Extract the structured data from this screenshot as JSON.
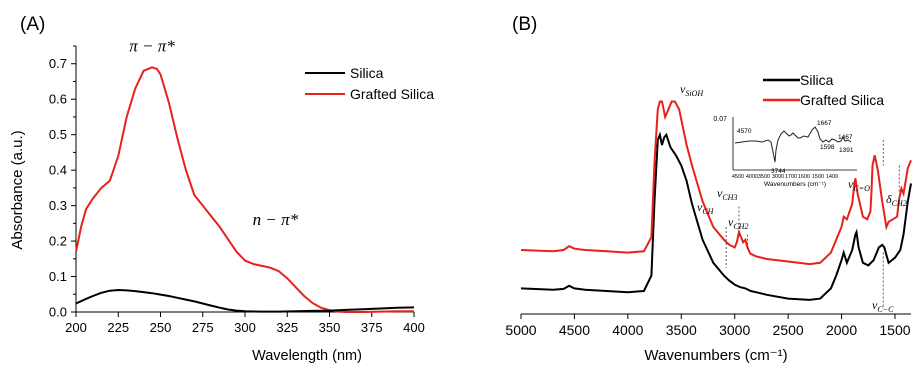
{
  "chart_data": [
    {
      "panel_label": "(A)",
      "type": "line",
      "xlabel": "Wavelength (nm)",
      "ylabel": "Absorbance (a.u.)",
      "xlim": [
        200,
        400
      ],
      "ylim": [
        0.0,
        0.75
      ],
      "xticks": [
        "200",
        "225",
        "250",
        "275",
        "300",
        "325",
        "350",
        "375",
        "400"
      ],
      "yticks": [
        "0.0",
        "0.1",
        "0.2",
        "0.3",
        "0.4",
        "0.5",
        "0.6",
        "0.7"
      ],
      "legend_position": "top-right",
      "annotations": [
        {
          "text": "π − π*",
          "x": 245,
          "y": 0.735
        },
        {
          "text": "n − π*",
          "x": 318,
          "y": 0.245
        }
      ],
      "series": [
        {
          "name": "Silica",
          "color": "#000000",
          "x": [
            200,
            205,
            210,
            215,
            220,
            225,
            230,
            235,
            240,
            245,
            250,
            255,
            260,
            265,
            270,
            275,
            280,
            285,
            290,
            295,
            300,
            310,
            320,
            330,
            340,
            350,
            360,
            370,
            380,
            390,
            400
          ],
          "y": [
            0.024,
            0.035,
            0.045,
            0.054,
            0.06,
            0.062,
            0.061,
            0.059,
            0.056,
            0.053,
            0.049,
            0.045,
            0.04,
            0.035,
            0.03,
            0.024,
            0.018,
            0.012,
            0.007,
            0.004,
            0.002,
            0.001,
            0.001,
            0.002,
            0.003,
            0.004,
            0.006,
            0.008,
            0.01,
            0.012,
            0.013
          ]
        },
        {
          "name": "Grafted Silica",
          "color": "#e8211d",
          "x": [
            200,
            203,
            206,
            210,
            215,
            220,
            225,
            230,
            235,
            240,
            245,
            248,
            250,
            255,
            260,
            265,
            270,
            275,
            280,
            285,
            290,
            295,
            300,
            305,
            310,
            315,
            320,
            325,
            330,
            335,
            340,
            345,
            350,
            355,
            360,
            370,
            380,
            390,
            400
          ],
          "y": [
            0.17,
            0.24,
            0.29,
            0.32,
            0.35,
            0.37,
            0.44,
            0.55,
            0.63,
            0.68,
            0.69,
            0.685,
            0.67,
            0.59,
            0.49,
            0.4,
            0.33,
            0.3,
            0.27,
            0.24,
            0.205,
            0.17,
            0.145,
            0.135,
            0.13,
            0.125,
            0.115,
            0.095,
            0.07,
            0.045,
            0.025,
            0.012,
            0.005,
            0.001,
            0.0,
            0.0,
            0.001,
            0.002,
            0.002
          ]
        }
      ]
    },
    {
      "panel_label": "(B)",
      "type": "line",
      "xlabel": "Wavenumbers (cm⁻¹)",
      "ylabel": "",
      "xlim": [
        5000,
        1350
      ],
      "ylim": [
        0.0,
        1.0
      ],
      "y_ticks_shown": false,
      "xticks": [
        "5000",
        "4500",
        "4000",
        "3500",
        "3000",
        "2500",
        "2000",
        "1500"
      ],
      "legend_position": "top-right",
      "annotations": [
        {
          "text": "νSiOH",
          "x": 3620,
          "y": 0.93
        },
        {
          "text": "νCH",
          "x": 3080,
          "y": 0.4
        },
        {
          "text": "νCH3",
          "x": 2960,
          "y": 0.48
        },
        {
          "text": "νCH2",
          "x": 2830,
          "y": 0.36
        },
        {
          "text": "νC=O",
          "x": 1610,
          "y": 0.73
        },
        {
          "text": "δCH2",
          "x": 1430,
          "y": 0.62
        },
        {
          "text": "νC−C",
          "x": 1610,
          "y": -0.08
        }
      ],
      "series": [
        {
          "name": "Silica",
          "color": "#000000",
          "x": [
            5000,
            4700,
            4600,
            4550,
            4500,
            4400,
            4200,
            4000,
            3850,
            3780,
            3750,
            3720,
            3700,
            3680,
            3660,
            3640,
            3600,
            3550,
            3500,
            3450,
            3400,
            3300,
            3200,
            3100,
            3050,
            3000,
            2950,
            2900,
            2850,
            2800,
            2700,
            2500,
            2300,
            2200,
            2100,
            2050,
            2000,
            1980,
            1950,
            1900,
            1870,
            1860,
            1840,
            1800,
            1750,
            1700,
            1650,
            1620,
            1600,
            1560,
            1500,
            1450,
            1420,
            1380,
            1350
          ],
          "y": [
            0.1,
            0.095,
            0.098,
            0.11,
            0.1,
            0.095,
            0.09,
            0.085,
            0.09,
            0.15,
            0.45,
            0.68,
            0.7,
            0.66,
            0.69,
            0.7,
            0.65,
            0.62,
            0.58,
            0.52,
            0.43,
            0.29,
            0.2,
            0.15,
            0.13,
            0.115,
            0.105,
            0.1,
            0.09,
            0.085,
            0.075,
            0.06,
            0.055,
            0.06,
            0.1,
            0.15,
            0.21,
            0.24,
            0.2,
            0.25,
            0.31,
            0.32,
            0.26,
            0.2,
            0.19,
            0.21,
            0.26,
            0.27,
            0.26,
            0.2,
            0.22,
            0.25,
            0.31,
            0.44,
            0.51
          ]
        },
        {
          "name": "Grafted Silica",
          "color": "#e8211d",
          "x": [
            5000,
            4700,
            4600,
            4550,
            4500,
            4400,
            4200,
            4000,
            3850,
            3780,
            3750,
            3720,
            3700,
            3680,
            3650,
            3620,
            3590,
            3560,
            3520,
            3480,
            3450,
            3400,
            3300,
            3200,
            3100,
            3050,
            3000,
            2980,
            2960,
            2940,
            2920,
            2900,
            2880,
            2860,
            2850,
            2800,
            2700,
            2500,
            2300,
            2200,
            2100,
            2050,
            2000,
            1980,
            1950,
            1900,
            1880,
            1870,
            1850,
            1800,
            1760,
            1730,
            1720,
            1710,
            1690,
            1660,
            1620,
            1580,
            1560,
            1520,
            1480,
            1460,
            1440,
            1420,
            1400,
            1380,
            1350
          ],
          "y": [
            0.25,
            0.245,
            0.25,
            0.265,
            0.255,
            0.25,
            0.245,
            0.24,
            0.245,
            0.3,
            0.6,
            0.8,
            0.83,
            0.83,
            0.77,
            0.8,
            0.83,
            0.83,
            0.8,
            0.72,
            0.66,
            0.58,
            0.44,
            0.34,
            0.29,
            0.27,
            0.26,
            0.28,
            0.32,
            0.3,
            0.28,
            0.29,
            0.26,
            0.24,
            0.235,
            0.225,
            0.215,
            0.205,
            0.195,
            0.2,
            0.24,
            0.29,
            0.34,
            0.38,
            0.37,
            0.43,
            0.51,
            0.53,
            0.47,
            0.38,
            0.37,
            0.4,
            0.48,
            0.58,
            0.62,
            0.56,
            0.44,
            0.34,
            0.36,
            0.37,
            0.38,
            0.45,
            0.49,
            0.47,
            0.52,
            0.57,
            0.6
          ]
        }
      ],
      "inset": {
        "type": "line",
        "xlabel": "Wavenumbers (cm⁻¹)",
        "xticks": [
          "4500",
          "4000",
          "3500",
          "3000",
          "1700",
          "1600",
          "1500",
          "1400"
        ],
        "ytick": "0.07",
        "point_labels": [
          "4570",
          "3744",
          "1667",
          "1598",
          "1467",
          "1391"
        ]
      }
    }
  ]
}
